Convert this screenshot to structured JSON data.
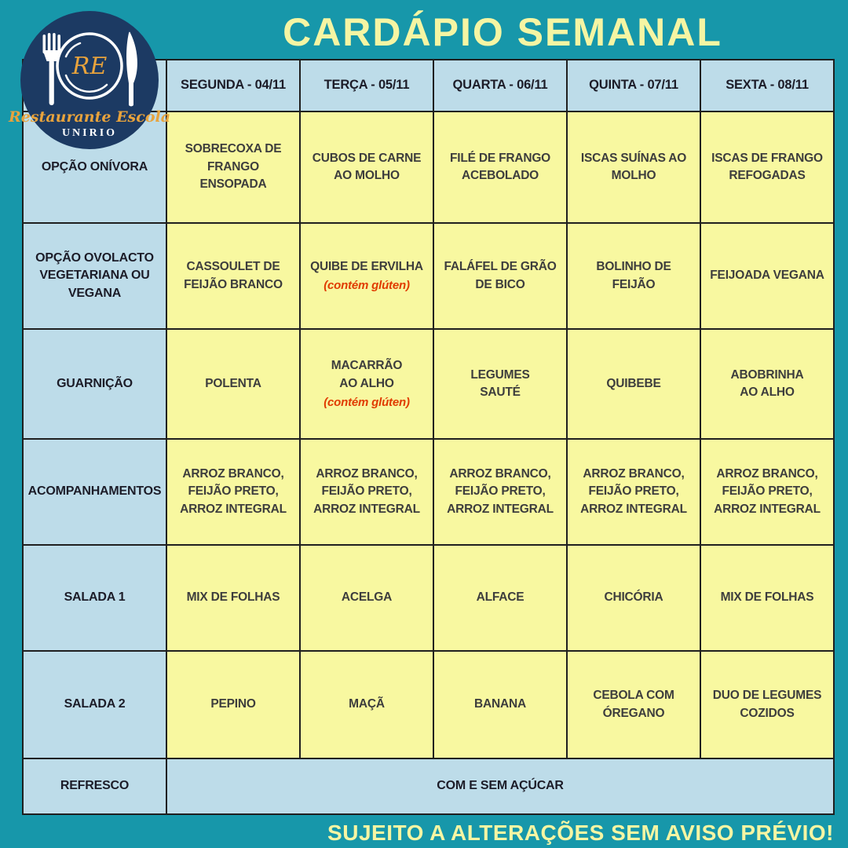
{
  "title": "CARDÁPIO SEMANAL",
  "footer": "SUJEITO A ALTERAÇÕES SEM AVISO PRÉVIO!",
  "logo": {
    "initials": "RE",
    "name": "Restaurante Escola",
    "org": "UNIRIO",
    "icon": "fork-plate-knife-icon"
  },
  "colors": {
    "background_teal": "#1797aa",
    "cell_yellow": "#f8f8a0",
    "cell_blue": "#bddce9",
    "logo_navy": "#1c3a63",
    "logo_gold": "#e8a33c",
    "title_yellow": "#f5f5a3",
    "gluten_note_red": "#e03b00",
    "grid_line": "#1f1f1f"
  },
  "table": {
    "day_headers": [
      "SEGUNDA - 04/11",
      "TERÇA - 05/11",
      "QUARTA - 06/11",
      "QUINTA - 07/11",
      "SEXTA - 08/11"
    ],
    "rows": [
      {
        "label": "OPÇÃO ONÍVORA",
        "cells": [
          {
            "text": "SOBRECOXA DE\nFRANGO\nENSOPADA"
          },
          {
            "text": "CUBOS DE CARNE\nAO MOLHO"
          },
          {
            "text": "FILÉ DE FRANGO\nACEBOLADO"
          },
          {
            "text": "ISCAS SUÍNAS AO\nMOLHO"
          },
          {
            "text": "ISCAS DE FRANGO\nREFOGADAS"
          }
        ]
      },
      {
        "label": "OPÇÃO OVOLACTO\nVEGETARIANA OU\nVEGANA",
        "cells": [
          {
            "text": "CASSOULET DE\nFEIJÃO BRANCO"
          },
          {
            "text": "QUIBE DE ERVILHA",
            "note": "(contém glúten)"
          },
          {
            "text": "FALÁFEL DE GRÃO\nDE BICO"
          },
          {
            "text": "BOLINHO DE\nFEIJÃO"
          },
          {
            "text": "FEIJOADA VEGANA"
          }
        ]
      },
      {
        "label": "GUARNIÇÃO",
        "cells": [
          {
            "text": "POLENTA"
          },
          {
            "text": "MACARRÃO\nAO ALHO",
            "note": "(contém glúten)"
          },
          {
            "text": "LEGUMES\nSAUTÉ"
          },
          {
            "text": "QUIBEBE"
          },
          {
            "text": "ABOBRINHA\nAO ALHO"
          }
        ]
      },
      {
        "label": "ACOMPANHAMENTOS",
        "cells": [
          {
            "text": "ARROZ BRANCO,\nFEIJÃO PRETO,\nARROZ INTEGRAL"
          },
          {
            "text": "ARROZ BRANCO,\nFEIJÃO PRETO,\nARROZ INTEGRAL"
          },
          {
            "text": "ARROZ BRANCO,\nFEIJÃO PRETO,\nARROZ INTEGRAL"
          },
          {
            "text": "ARROZ BRANCO,\nFEIJÃO PRETO,\nARROZ INTEGRAL"
          },
          {
            "text": "ARROZ BRANCO,\nFEIJÃO PRETO,\nARROZ INTEGRAL"
          }
        ]
      },
      {
        "label": "SALADA 1",
        "cells": [
          {
            "text": "MIX DE FOLHAS"
          },
          {
            "text": "ACELGA"
          },
          {
            "text": "ALFACE"
          },
          {
            "text": "CHICÓRIA"
          },
          {
            "text": "MIX DE FOLHAS"
          }
        ]
      },
      {
        "label": "SALADA 2",
        "cells": [
          {
            "text": "PEPINO"
          },
          {
            "text": "MAÇÃ"
          },
          {
            "text": "BANANA"
          },
          {
            "text": "CEBOLA COM\nÓREGANO"
          },
          {
            "text": "DUO DE LEGUMES\nCOZIDOS"
          }
        ]
      },
      {
        "label": "REFRESCO",
        "span_text": "COM E SEM AÇÚCAR"
      }
    ]
  }
}
